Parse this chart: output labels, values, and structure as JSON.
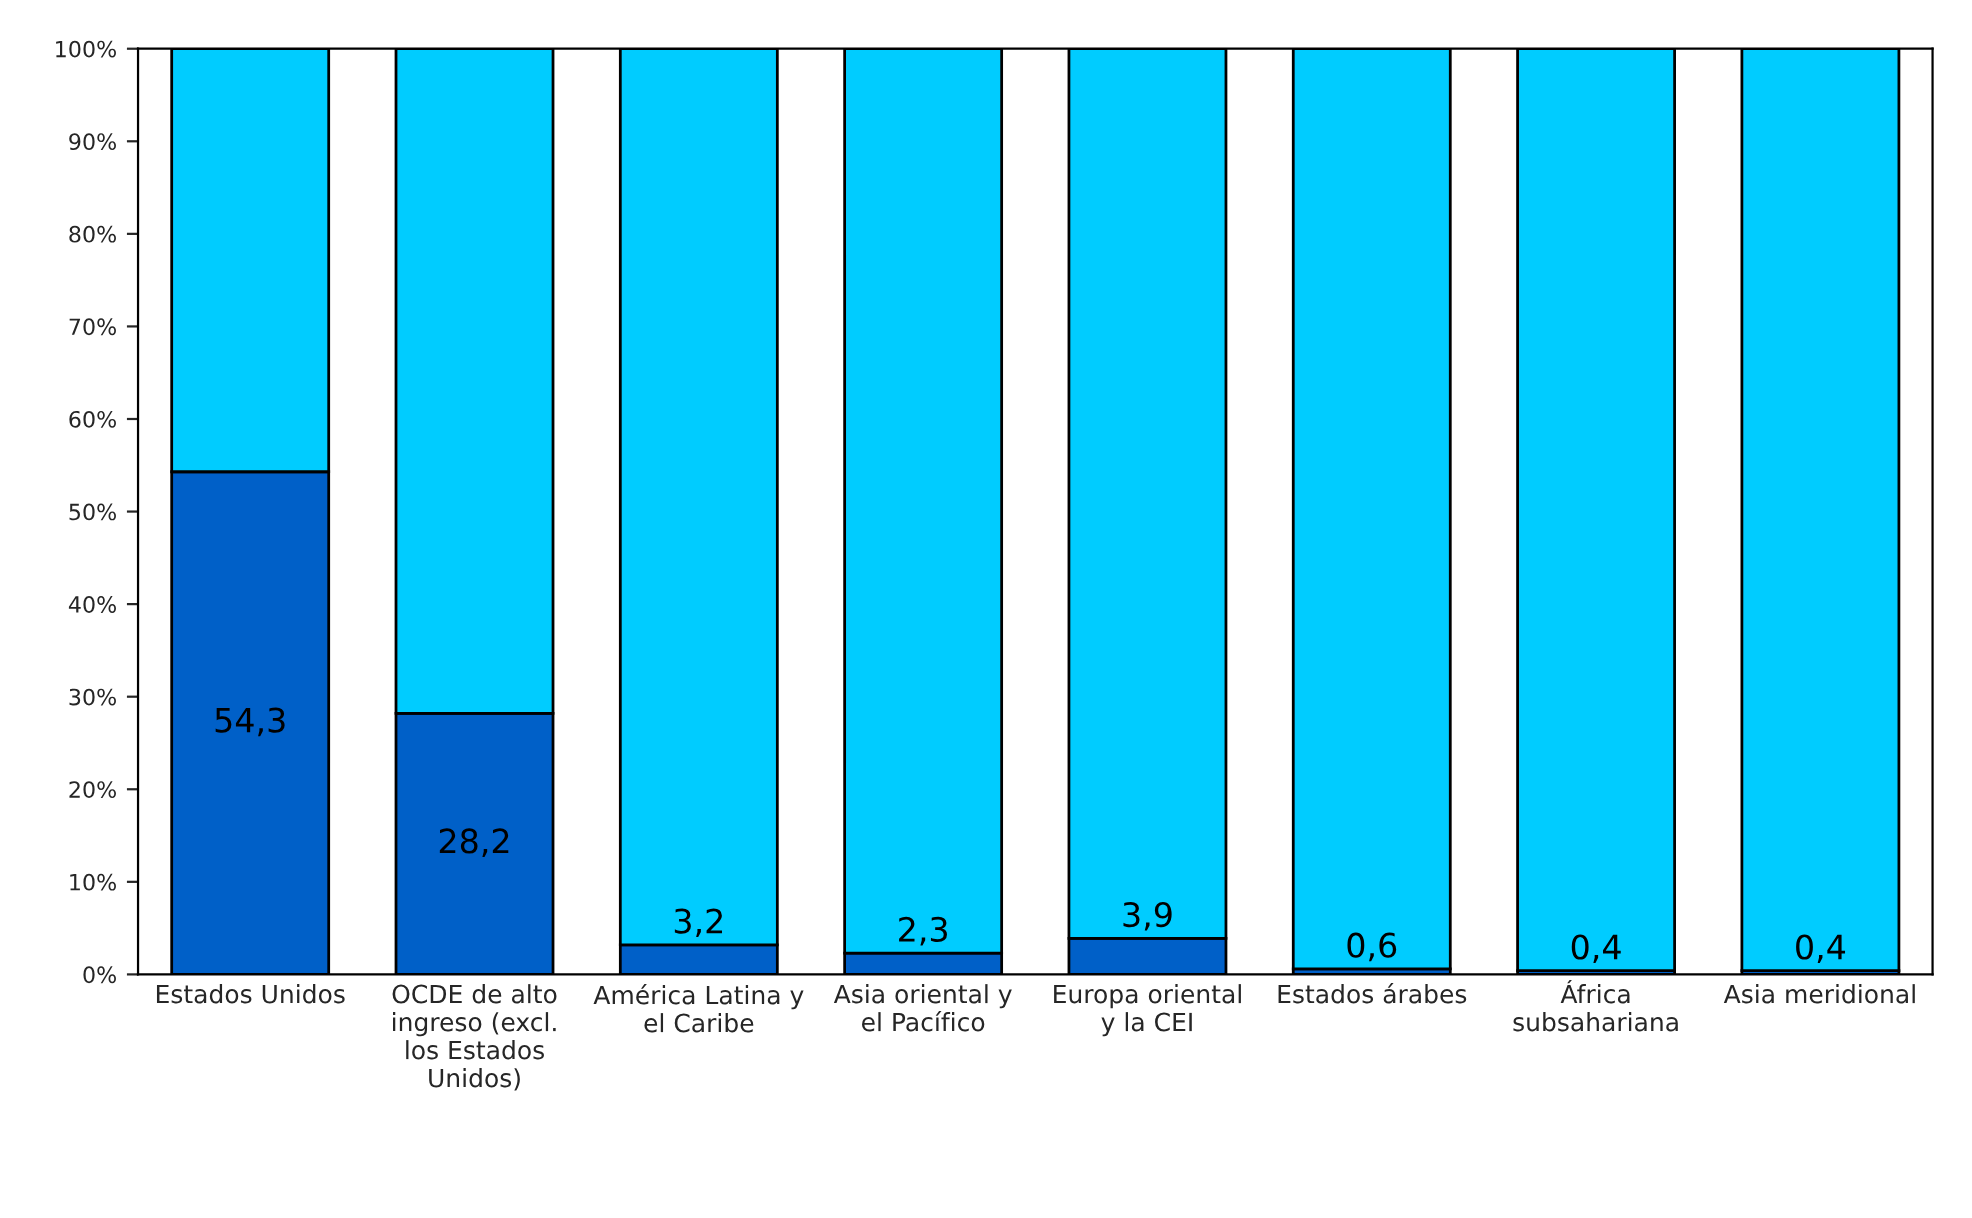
{
  "chart_data": {
    "type": "bar",
    "stacked": true,
    "categories": [
      "Estados Unidos",
      "OCDE de alto ingreso (excl. los Estados Unidos)",
      "América Latina y el Caribe",
      "Asia oriental y el Pacífico",
      "Europa oriental y la CEI",
      "Estados árabes",
      "África subsahariana",
      "Asia meridional"
    ],
    "series": [
      {
        "color": "#0060c8",
        "values": [
          54.3,
          28.2,
          3.2,
          2.3,
          3.9,
          0.6,
          0.4,
          0.4
        ],
        "value_labels": [
          "54,3",
          "28,2",
          "3,2",
          "2,3",
          "3,9",
          "0,6",
          "0,4",
          "0,4"
        ]
      },
      {
        "color": "#00ccff",
        "values": [
          45.7,
          71.8,
          96.8,
          97.7,
          96.1,
          99.4,
          99.6,
          99.6
        ]
      }
    ],
    "ylim": [
      0,
      100
    ],
    "yticks": [
      {
        "value": 0,
        "label": "0%"
      },
      {
        "value": 10,
        "label": "10%"
      },
      {
        "value": 20,
        "label": "20%"
      },
      {
        "value": 30,
        "label": "30%"
      },
      {
        "value": 40,
        "label": "40%"
      },
      {
        "value": 50,
        "label": "50%"
      },
      {
        "value": 60,
        "label": "60%"
      },
      {
        "value": 70,
        "label": "70%"
      },
      {
        "value": 80,
        "label": "80%"
      },
      {
        "value": 90,
        "label": "90%"
      },
      {
        "value": 100,
        "label": "100%"
      }
    ],
    "grid": false
  }
}
